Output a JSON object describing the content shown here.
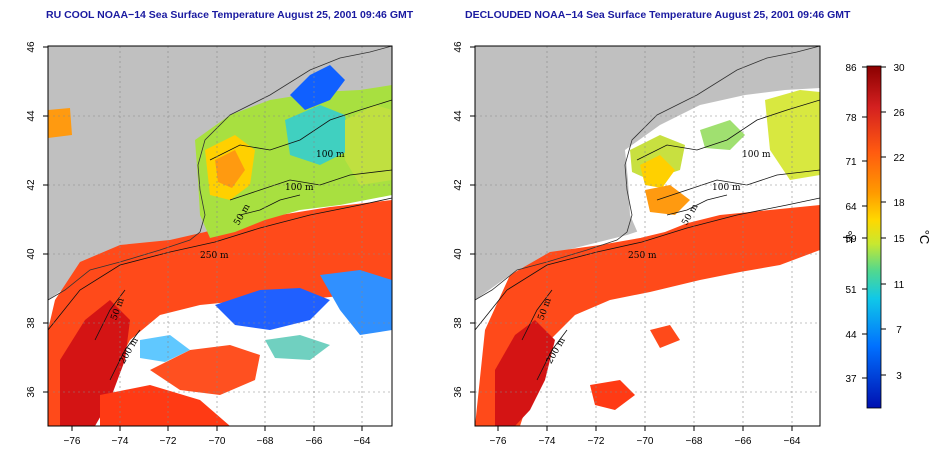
{
  "panels": [
    {
      "title": "RU COOL NOAA−14 Sea Surface Temperature August 25, 2001 09:46 GMT",
      "contour_labels": [
        "100 m",
        "100 m",
        "50 m",
        "250 m",
        "50 m",
        "200 m"
      ]
    },
    {
      "title": "DECLOUDED NOAA−14 Sea Surface Temperature August 25, 2001 09:46 GMT",
      "contour_labels": [
        "100 m",
        "100 m",
        "50 m",
        "250 m",
        "50 m",
        "200 m"
      ]
    }
  ],
  "axes": {
    "x_ticks": [
      "−76",
      "−74",
      "−72",
      "−70",
      "−68",
      "−66",
      "−64"
    ],
    "y_ticks": [
      "46",
      "44",
      "42",
      "40",
      "38",
      "36"
    ]
  },
  "colorbar": {
    "fahrenheit_label": "°F",
    "celsius_label": "°C",
    "fahrenheit_ticks": [
      "86",
      "78",
      "71",
      "64",
      "59",
      "51",
      "44",
      "37"
    ],
    "celsius_ticks": [
      "30",
      "26",
      "22",
      "18",
      "15",
      "11",
      "7",
      "3"
    ],
    "gradient_colors": [
      "#8b0000",
      "#d42020",
      "#ff5a10",
      "#ff9a00",
      "#ffd800",
      "#c8e830",
      "#50d890",
      "#10c8e8",
      "#0070ff",
      "#0010b0"
    ]
  },
  "colors": {
    "land": "#c0c0c0",
    "cloud": "#ffffff",
    "warm_water": "#ff4a1a",
    "hot_water": "#d41414",
    "cool_water": "#a8e040",
    "mid_water": "#ffd000",
    "cold_water": "#2080ff",
    "title": "#1a1aa0"
  }
}
